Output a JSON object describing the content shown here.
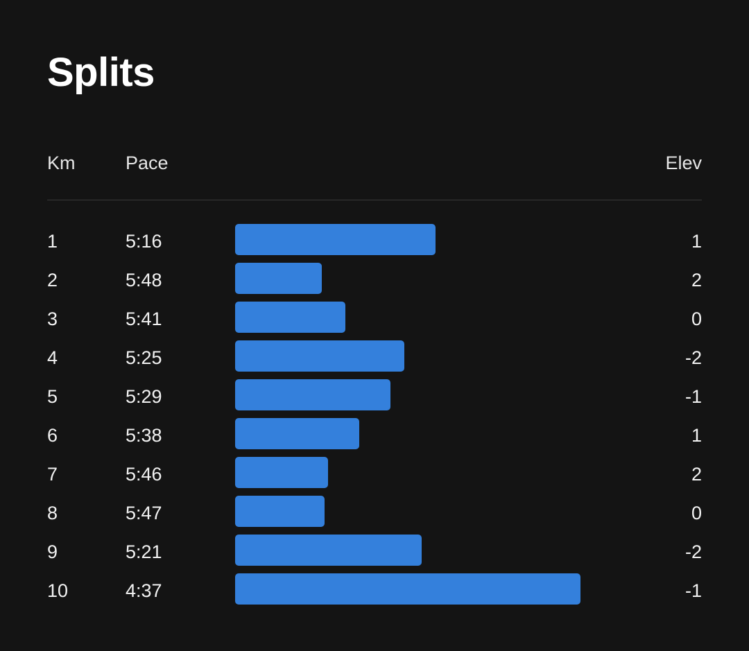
{
  "title": "Splits",
  "columns": {
    "km": "Km",
    "pace": "Pace",
    "elev": "Elev"
  },
  "colors": {
    "background": "#141414",
    "bar": "#3480dc",
    "divider": "#3a3a3a",
    "text": "#ffffff"
  },
  "splits": [
    {
      "km": "1",
      "pace": "5:16",
      "elev": "1",
      "relative_speed": 0.58
    },
    {
      "km": "2",
      "pace": "5:48",
      "elev": "2",
      "relative_speed": 0.25
    },
    {
      "km": "3",
      "pace": "5:41",
      "elev": "0",
      "relative_speed": 0.32
    },
    {
      "km": "4",
      "pace": "5:25",
      "elev": "-2",
      "relative_speed": 0.49
    },
    {
      "km": "5",
      "pace": "5:29",
      "elev": "-1",
      "relative_speed": 0.45
    },
    {
      "km": "6",
      "pace": "5:38",
      "elev": "1",
      "relative_speed": 0.36
    },
    {
      "km": "7",
      "pace": "5:46",
      "elev": "2",
      "relative_speed": 0.27
    },
    {
      "km": "8",
      "pace": "5:47",
      "elev": "0",
      "relative_speed": 0.26
    },
    {
      "km": "9",
      "pace": "5:21",
      "elev": "-2",
      "relative_speed": 0.54
    },
    {
      "km": "10",
      "pace": "4:37",
      "elev": "-1",
      "relative_speed": 1.0
    }
  ]
}
